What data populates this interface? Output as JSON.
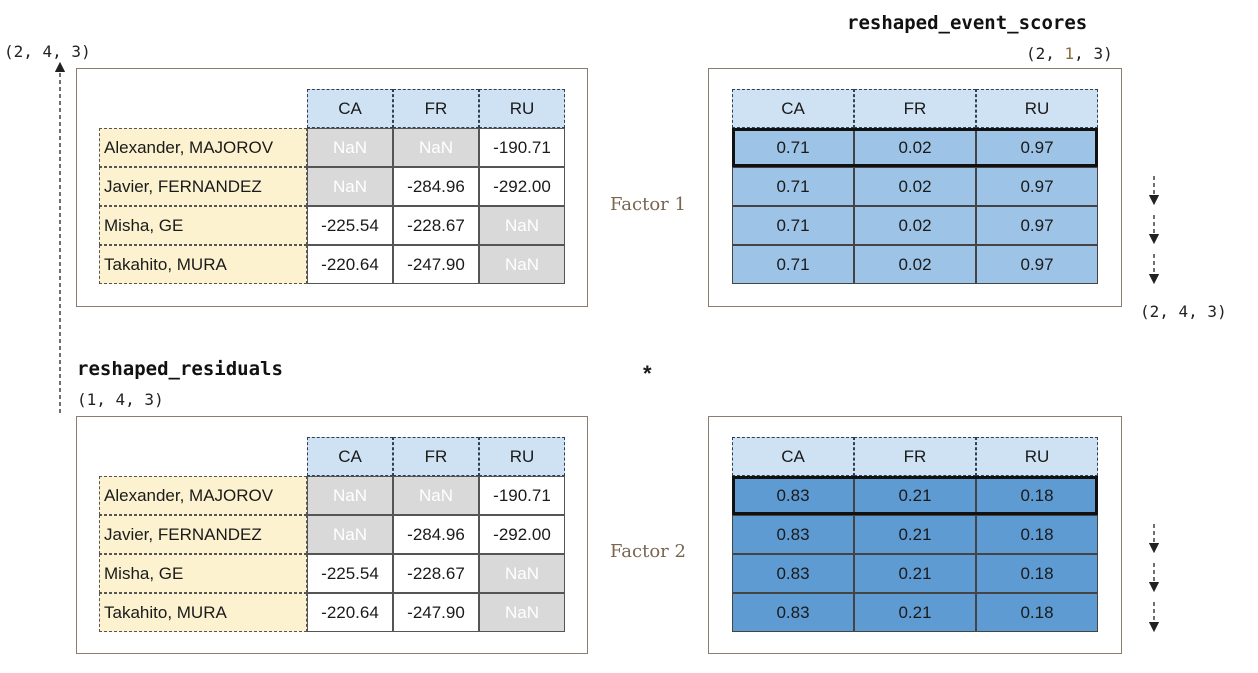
{
  "labels": {
    "event_scores_title": "reshaped_event_scores",
    "event_scores_shape": {
      "pre": "(2, ",
      "mid": "1",
      "post": ", 3)"
    },
    "output_shape": "(2, 4, 3)",
    "residuals_title": "reshaped_residuals",
    "residuals_shape": "(1, 4, 3)",
    "broadcast_shape": "(2, 4, 3)",
    "factor1": "Factor 1",
    "factor2": "Factor 2",
    "operator": "*"
  },
  "residuals": {
    "columns": [
      "CA",
      "FR",
      "RU"
    ],
    "rows": [
      {
        "name": "Alexander, MAJOROV",
        "values": [
          "NaN",
          "NaN",
          "-190.71"
        ]
      },
      {
        "name": "Javier, FERNANDEZ",
        "values": [
          "NaN",
          "-284.96",
          "-292.00"
        ]
      },
      {
        "name": "Misha, GE",
        "values": [
          "-225.54",
          "-228.67",
          "NaN"
        ]
      },
      {
        "name": "Takahito, MURA",
        "values": [
          "-220.64",
          "-247.90",
          "NaN"
        ]
      }
    ]
  },
  "event_scores": {
    "columns": [
      "CA",
      "FR",
      "RU"
    ],
    "factor1": [
      [
        "0.71",
        "0.02",
        "0.97"
      ],
      [
        "0.71",
        "0.02",
        "0.97"
      ],
      [
        "0.71",
        "0.02",
        "0.97"
      ],
      [
        "0.71",
        "0.02",
        "0.97"
      ]
    ],
    "factor2": [
      [
        "0.83",
        "0.21",
        "0.18"
      ],
      [
        "0.83",
        "0.21",
        "0.18"
      ],
      [
        "0.83",
        "0.21",
        "0.18"
      ],
      [
        "0.83",
        "0.21",
        "0.18"
      ]
    ]
  },
  "colors": {
    "header": "#cfe2f3",
    "row_label": "#fdf2d0",
    "nan": "#d9d9d9",
    "factor1_scores": "#9dc3e6",
    "factor2_scores": "#5f9bd3"
  }
}
